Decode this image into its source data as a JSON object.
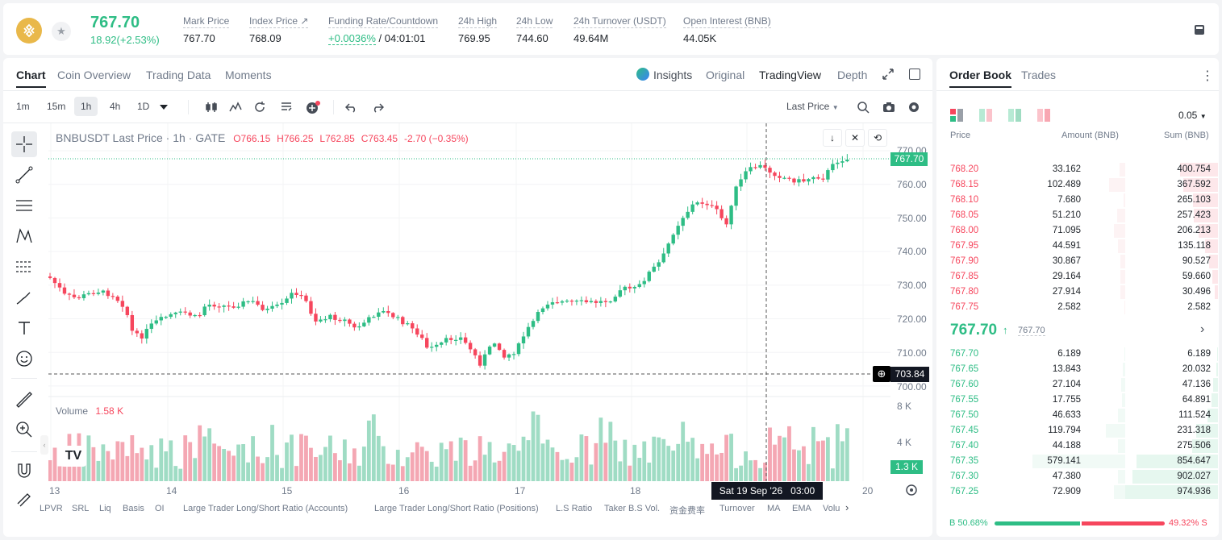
{
  "header": {
    "last_price": "767.70",
    "change": "18.92(+2.53%)",
    "stats": [
      {
        "label": "Mark Price",
        "value": "767.70"
      },
      {
        "label": "Index Price ↗",
        "value": "768.09"
      },
      {
        "label": "Funding Rate/Countdown",
        "value": "+0.0036%",
        "value2": "/ 04:01:01"
      },
      {
        "label": "24h High",
        "value": "769.95"
      },
      {
        "label": "24h Low",
        "value": "744.60"
      },
      {
        "label": "24h Turnover (USDT)",
        "value": "49.64M"
      },
      {
        "label": "Open Interest (BNB)",
        "value": "44.05K"
      }
    ]
  },
  "chart_tabs": [
    "Chart",
    "Coin Overview",
    "Trading Data",
    "Moments"
  ],
  "view_tabs": {
    "insights": "Insights",
    "original": "Original",
    "tradingview": "TradingView",
    "depth": "Depth"
  },
  "intervals": [
    "1m",
    "15m",
    "1h",
    "4h",
    "1D"
  ],
  "price_type": "Last Price",
  "legend": {
    "symbol": "BNBUSDT Last Price · 1h · GATE",
    "o": "O766.15",
    "h": "H766.25",
    "l": "L762.85",
    "c": "C763.45",
    "chg": "-2.70 (−0.35%)"
  },
  "volume_legend": {
    "label": "Volume",
    "value": "1.58 K"
  },
  "price_labels": {
    "current": "767.70",
    "crosshair": "703.84",
    "volume": "1.3 K"
  },
  "y_ticks": [
    "770.00",
    "760.00",
    "750.00",
    "740.00",
    "730.00",
    "720.00",
    "710.00",
    "700.00"
  ],
  "vol_ticks": [
    "8 K",
    "4 K"
  ],
  "x_ticks": [
    "13",
    "14",
    "15",
    "16",
    "17",
    "18",
    "19",
    "20"
  ],
  "crosshair_time": "Sat 19 Sep '26   03:00",
  "indicators": [
    "LPVR",
    "SRL",
    "Liq",
    "Basis",
    "OI",
    "Large Trader Long/Short Ratio (Accounts)",
    "Large Trader Long/Short Ratio (Positions)",
    "L.S Ratio",
    "Taker B.S Vol.",
    "资金费率",
    "Turnover",
    "MA",
    "EMA",
    "Volu"
  ],
  "orderbook": {
    "tabs": [
      "Order Book",
      "Trades"
    ],
    "tick": "0.05",
    "headers": {
      "price": "Price",
      "amount": "Amount (BNB)",
      "sum": "Sum (BNB)"
    },
    "asks": [
      {
        "price": "768.20",
        "amount": "33.162",
        "sum": "400.754"
      },
      {
        "price": "768.15",
        "amount": "102.489",
        "sum": "367.592"
      },
      {
        "price": "768.10",
        "amount": "7.680",
        "sum": "265.103"
      },
      {
        "price": "768.05",
        "amount": "51.210",
        "sum": "257.423"
      },
      {
        "price": "768.00",
        "amount": "71.095",
        "sum": "206.213"
      },
      {
        "price": "767.95",
        "amount": "44.591",
        "sum": "135.118"
      },
      {
        "price": "767.90",
        "amount": "30.867",
        "sum": "90.527"
      },
      {
        "price": "767.85",
        "amount": "29.164",
        "sum": "59.660"
      },
      {
        "price": "767.80",
        "amount": "27.914",
        "sum": "30.496"
      },
      {
        "price": "767.75",
        "amount": "2.582",
        "sum": "2.582"
      }
    ],
    "mid_price": "767.70",
    "mark_price": "767.70",
    "bids": [
      {
        "price": "767.70",
        "amount": "6.189",
        "sum": "6.189"
      },
      {
        "price": "767.65",
        "amount": "13.843",
        "sum": "20.032"
      },
      {
        "price": "767.60",
        "amount": "27.104",
        "sum": "47.136"
      },
      {
        "price": "767.55",
        "amount": "17.755",
        "sum": "64.891"
      },
      {
        "price": "767.50",
        "amount": "46.633",
        "sum": "111.524"
      },
      {
        "price": "767.45",
        "amount": "119.794",
        "sum": "231.318"
      },
      {
        "price": "767.40",
        "amount": "44.188",
        "sum": "275.506"
      },
      {
        "price": "767.35",
        "amount": "579.141",
        "sum": "854.647"
      },
      {
        "price": "767.30",
        "amount": "47.380",
        "sum": "902.027"
      },
      {
        "price": "767.25",
        "amount": "72.909",
        "sum": "974.936"
      }
    ],
    "buy_ratio": "B 50.68%",
    "sell_ratio": "49.32% S"
  },
  "colors": {
    "up": "#2ebd85",
    "down": "#f6465d",
    "accent": "#f0b90b"
  }
}
